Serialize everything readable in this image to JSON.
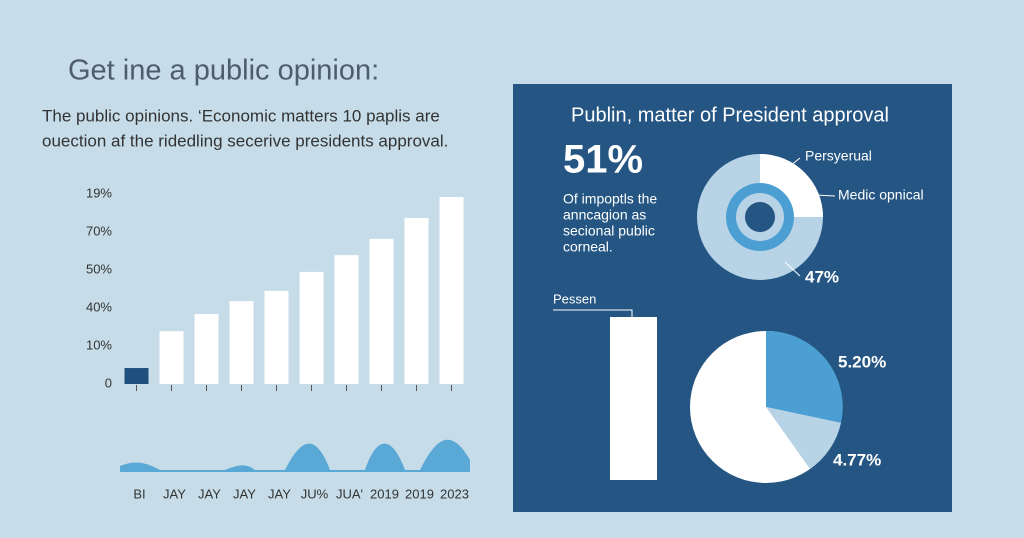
{
  "header": {
    "title": "Get ine a public opinion:",
    "subtitle_lines": [
      "The public opinions. ‘Economic matters 10 paplis are",
      "ouection af the ridedling secerive presidents approval."
    ]
  },
  "chart_data": {
    "type": "bar",
    "categories": [
      "BI",
      "JAY",
      "JAY",
      "JAY",
      "JAY",
      "JU%",
      "JUA'",
      "2019",
      "2019",
      "2023"
    ],
    "values": [
      0.42,
      1.39,
      1.84,
      2.18,
      2.45,
      2.95,
      3.39,
      3.82,
      4.37,
      4.92
    ],
    "colors": [
      "#1f4f7c",
      "#ffffff",
      "#ffffff",
      "#ffffff",
      "#ffffff",
      "#ffffff",
      "#ffffff",
      "#ffffff",
      "#ffffff",
      "#ffffff"
    ],
    "ylim": [
      0,
      5
    ],
    "yticks": [
      0,
      {
        "value": 1,
        "label": "10%"
      },
      {
        "value": 2,
        "label": "40%"
      },
      {
        "value": 3,
        "label": "50%"
      },
      {
        "value": 4,
        "label": "70%"
      },
      {
        "value": 5,
        "label": "19%"
      }
    ]
  },
  "panel": {
    "title": "Publin, matter of President approval",
    "big_number": "51%",
    "description_lines": [
      "Of impoptls the",
      "anncagion as",
      "secional public",
      "corneal."
    ],
    "donut_labels": [
      "Persyerual",
      "Medic opnical",
      "47%"
    ],
    "bar_label": "Pessen",
    "pie_labels": [
      "5.20%",
      "4.77%"
    ]
  }
}
